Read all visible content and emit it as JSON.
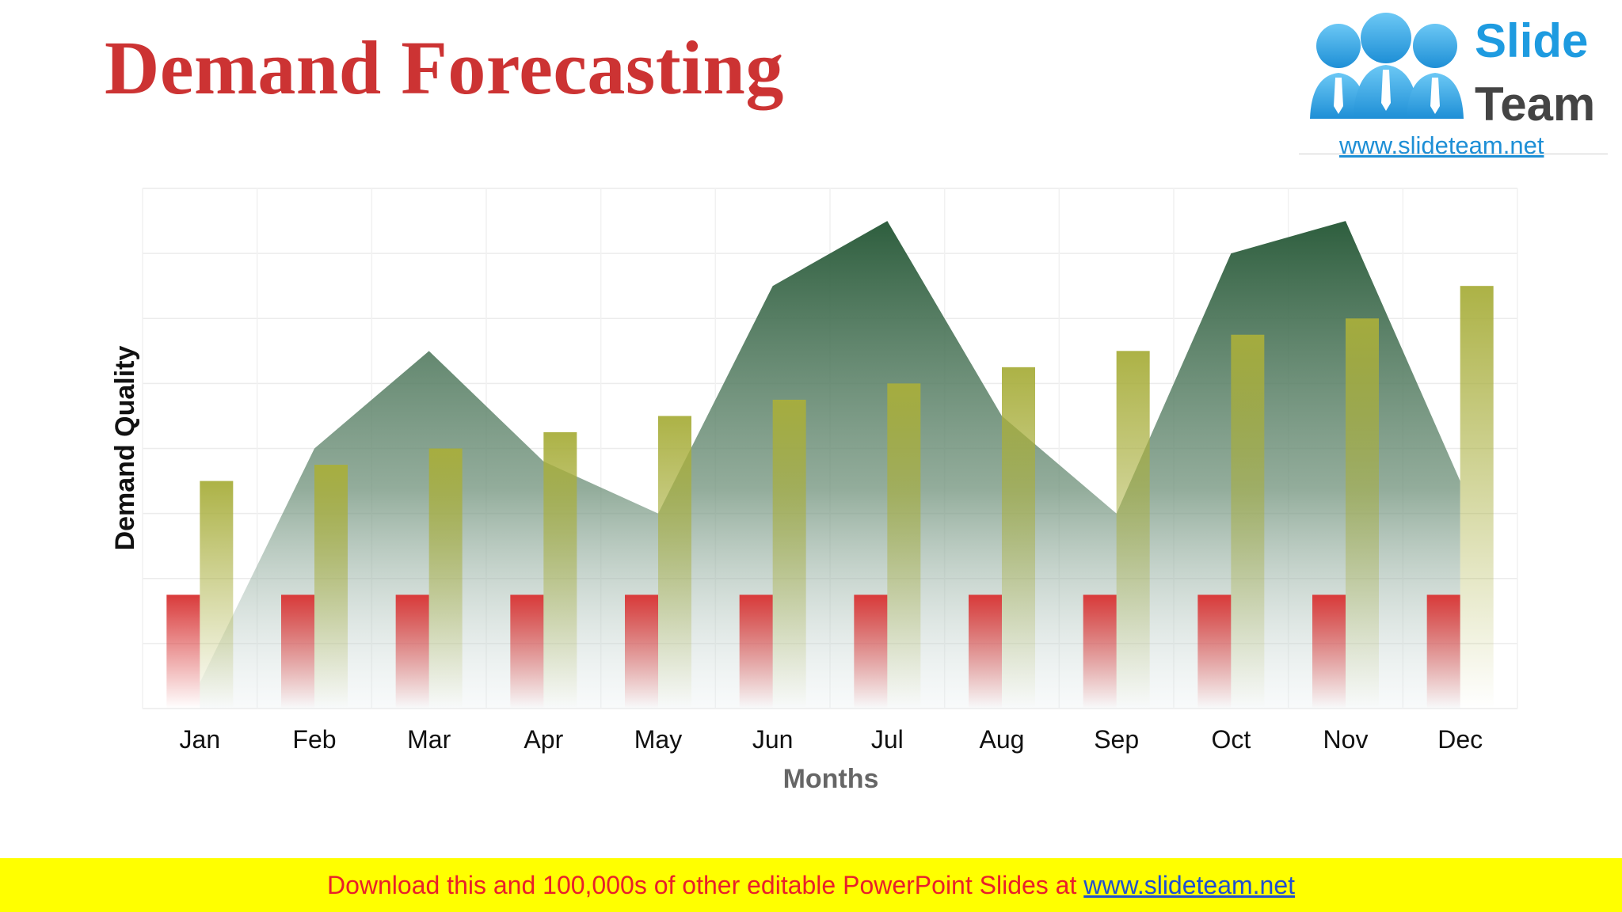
{
  "slide": {
    "title": "Demand Forecasting"
  },
  "logo": {
    "line1": "Slide",
    "line2": "Team",
    "url": "www.slideteam.net"
  },
  "banner": {
    "text": "Download this and 100,000s of other editable PowerPoint Slides at ",
    "link": "www.slideteam.net"
  },
  "colors": {
    "title": "#cc3333",
    "area_series": "#2e5e3e",
    "bar_series_a": "#d93a3a",
    "bar_series_b": "#a8ae3c",
    "banner_bg": "#ffff00",
    "banner_text": "#e8202a",
    "banner_link": "#1f4fd0",
    "logo_blue": "#1e9be0"
  },
  "chart_data": {
    "type": "bar",
    "title": "",
    "xlabel": "Months",
    "ylabel": "Demand Quality",
    "categories": [
      "Jan",
      "Feb",
      "Mar",
      "Apr",
      "May",
      "Jun",
      "Jul",
      "Aug",
      "Sep",
      "Oct",
      "Nov",
      "Dec"
    ],
    "ylim": [
      0,
      8
    ],
    "grid": true,
    "legend": "none",
    "series": [
      {
        "kind": "area",
        "values": [
          0.4,
          4.0,
          5.5,
          3.8,
          3.0,
          6.5,
          7.5,
          4.5,
          3.0,
          7.0,
          7.5,
          3.5
        ]
      },
      {
        "kind": "bar",
        "values": [
          1.75,
          1.75,
          1.75,
          1.75,
          1.75,
          1.75,
          1.75,
          1.75,
          1.75,
          1.75,
          1.75,
          1.75
        ]
      },
      {
        "kind": "bar",
        "values": [
          3.5,
          3.75,
          4.0,
          4.25,
          4.5,
          4.75,
          5.0,
          5.25,
          5.5,
          5.75,
          6.0,
          6.5
        ]
      }
    ]
  }
}
